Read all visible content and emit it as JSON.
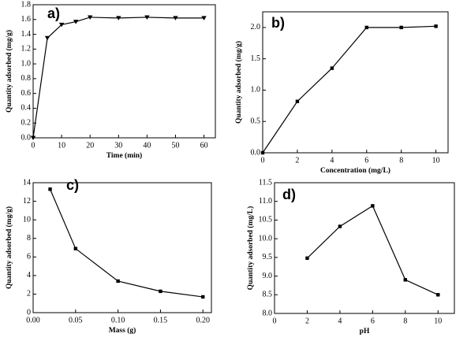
{
  "chart_data": [
    {
      "type": "line",
      "label": "a)",
      "x_label": "Time (min)",
      "y_label": "Quantity adsorbed (mg/g)",
      "x": [
        0,
        5,
        10,
        15,
        20,
        30,
        40,
        50,
        60
      ],
      "values": [
        0,
        1.35,
        1.53,
        1.57,
        1.63,
        1.62,
        1.63,
        1.62,
        1.62
      ],
      "color": "#000000",
      "marker": "triangle-down",
      "xlim": [
        0,
        64
      ],
      "ylim": [
        0,
        1.8
      ],
      "xticks": [
        0,
        10,
        20,
        30,
        40,
        50,
        60
      ],
      "yticks": [
        {
          "value": 0,
          "label": "0.0"
        },
        0.2,
        0.4,
        0.6,
        0.8,
        {
          "value": 1,
          "label": "1.0"
        },
        1.2,
        1.4,
        1.6,
        1.8
      ]
    },
    {
      "type": "line",
      "label": "b)",
      "x_label": "Concentration (mg/L)",
      "y_label": "Quantity adsorbed (mg/g)",
      "x": [
        0,
        2,
        4,
        6,
        8,
        10
      ],
      "values": [
        0,
        0.82,
        1.35,
        2.0,
        2.0,
        2.02
      ],
      "color": "#000000",
      "marker": "square",
      "xlim": [
        0,
        10.7
      ],
      "ylim": [
        0,
        2.25
      ],
      "xticks": [
        0,
        2,
        4,
        6,
        8,
        10
      ],
      "yticks": [
        {
          "value": 0,
          "label": "0.0"
        },
        0.5,
        {
          "value": 1,
          "label": "1.0"
        },
        1.5,
        {
          "value": 2,
          "label": "2.0"
        }
      ]
    },
    {
      "type": "line",
      "label": "c)",
      "x_label": "Mass (g)",
      "y_label": "Quantity adsorbed (mg/g)",
      "x": [
        0.02,
        0.05,
        0.1,
        0.15,
        0.2
      ],
      "values": [
        13.3,
        6.9,
        3.4,
        2.3,
        1.7
      ],
      "color": "#000000",
      "marker": "square",
      "xlim": [
        0,
        0.21
      ],
      "ylim": [
        0,
        14
      ],
      "xticks": [
        {
          "value": 0,
          "label": "0.00"
        },
        0.05,
        {
          "value": 0.1,
          "label": "0.10"
        },
        0.15,
        {
          "value": 0.2,
          "label": "0.20"
        }
      ],
      "yticks": [
        0,
        2,
        4,
        6,
        8,
        10,
        12,
        14
      ]
    },
    {
      "type": "line",
      "label": "d)",
      "x_label": "pH",
      "y_label": "Quantity adsorbed (mg/L)",
      "x": [
        2,
        4,
        6,
        8,
        10
      ],
      "values": [
        9.48,
        10.33,
        10.88,
        8.9,
        8.5
      ],
      "color": "#000000",
      "marker": "square",
      "xlim": [
        0,
        11
      ],
      "ylim": [
        8,
        11.5
      ],
      "xticks": [
        0,
        2,
        4,
        6,
        8,
        10
      ],
      "yticks": [
        {
          "value": 8,
          "label": "8.0"
        },
        8.5,
        {
          "value": 9,
          "label": "9.0"
        },
        9.5,
        {
          "value": 10,
          "label": "10.0"
        },
        10.5,
        {
          "value": 11,
          "label": "11.0"
        },
        11.5
      ]
    }
  ]
}
